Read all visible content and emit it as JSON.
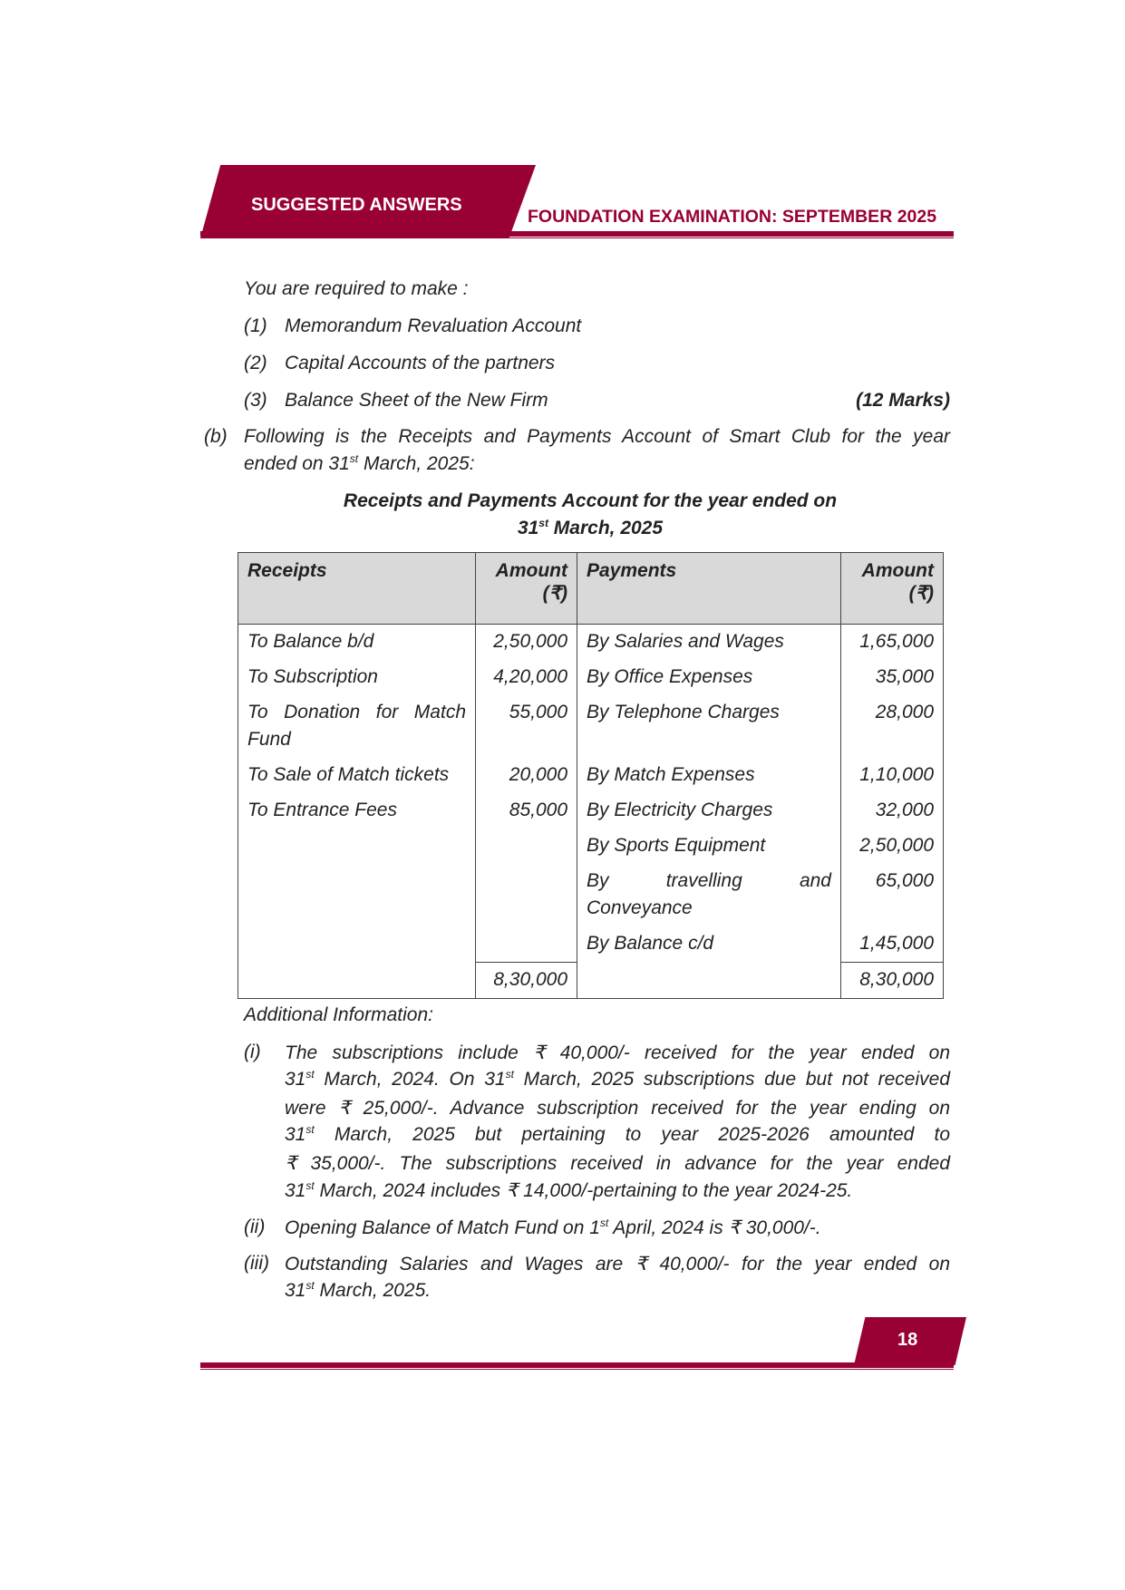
{
  "header": {
    "left": "SUGGESTED ANSWERS",
    "right": "FOUNDATION EXAMINATION: SEPTEMBER 2025",
    "brand_color": "#990033"
  },
  "intro": "You are required to make :",
  "requirements": [
    {
      "num": "(1)",
      "text": "Memorandum Revaluation Account"
    },
    {
      "num": "(2)",
      "text": "Capital Accounts of the partners"
    },
    {
      "num": "(3)",
      "text": "Balance Sheet of the New Firm"
    }
  ],
  "marks": "(12 Marks)",
  "part_b": {
    "num": "(b)",
    "line1": "Following is the Receipts and Payments Account of Smart Club for the year",
    "line2": [
      [
        "ended on 31",
        0
      ],
      [
        "st",
        1
      ],
      [
        " March, 2025:",
        0
      ]
    ]
  },
  "table_title": {
    "line1": "Receipts and Payments Account for the year ended on",
    "line2": [
      [
        "31",
        0
      ],
      [
        "st",
        1
      ],
      [
        " March, 2025",
        0
      ]
    ]
  },
  "table": {
    "headers": {
      "receipts": "Receipts",
      "amount1": "Amount",
      "amount1_unit": "(₹)",
      "payments": "Payments",
      "amount2": "Amount",
      "amount2_unit": "(₹)"
    },
    "rows": [
      {
        "r": "To Balance b/d",
        "ra": "2,50,000",
        "p": "By Salaries and Wages",
        "pa": "1,65,000"
      },
      {
        "r": "To Subscription",
        "ra": "4,20,000",
        "p": "By Office Expenses",
        "pa": "35,000"
      },
      {
        "r": "To Donation for Match Fund",
        "ra": "55,000",
        "p": "By Telephone Charges",
        "pa": "28,000"
      },
      {
        "r": "To Sale of Match tickets",
        "ra": "20,000",
        "p": "By Match Expenses",
        "pa": "1,10,000"
      },
      {
        "r": "To Entrance Fees",
        "ra": "85,000",
        "p": "By Electricity Charges",
        "pa": "32,000"
      },
      {
        "r": "",
        "ra": "",
        "p": "By Sports Equipment",
        "pa": "2,50,000"
      },
      {
        "r": "",
        "ra": "",
        "p": "By travelling and Conveyance",
        "pa": "65,000"
      },
      {
        "r": "",
        "ra": "",
        "p": "By Balance c/d",
        "pa": "1,45,000"
      }
    ],
    "totals": {
      "receipts": "8,30,000",
      "payments": "8,30,000"
    }
  },
  "additional_title": "Additional Information:",
  "notes": [
    {
      "num": "(i)",
      "lines": [
        [
          [
            "The subscriptions include ₹ 40,000/- received for the year ended on",
            0
          ]
        ],
        [
          [
            "31",
            0
          ],
          [
            "st",
            1
          ],
          [
            " March, 2024. On 31",
            0
          ],
          [
            "st",
            1
          ],
          [
            " March, 2025 subscriptions due but not received",
            0
          ]
        ],
        [
          [
            "were ₹ 25,000/-. Advance subscription received for the year ending on",
            0
          ]
        ],
        [
          [
            "31",
            0
          ],
          [
            "st",
            1
          ],
          [
            " March, 2025 but pertaining to year 2025-2026 amounted to",
            0
          ]
        ],
        [
          [
            "₹ 35,000/-. The subscriptions received in advance for the year ended",
            0
          ]
        ],
        [
          [
            "31",
            0
          ],
          [
            "st",
            1
          ],
          [
            " March, 2024 includes ₹ 14,000/-pertaining to the year 2024-25.",
            0
          ]
        ]
      ]
    },
    {
      "num": "(ii)",
      "lines": [
        [
          [
            "Opening Balance of Match Fund on 1",
            0
          ],
          [
            "st",
            1
          ],
          [
            " April, 2024 is ₹ 30,000/-.",
            0
          ]
        ]
      ]
    },
    {
      "num": "(iii)",
      "lines": [
        [
          [
            "Outstanding Salaries and Wages are ₹ 40,000/- for the year ended on",
            0
          ]
        ],
        [
          [
            "31",
            0
          ],
          [
            "st",
            1
          ],
          [
            " March, 2025.",
            0
          ]
        ]
      ]
    }
  ],
  "page_number": "18"
}
